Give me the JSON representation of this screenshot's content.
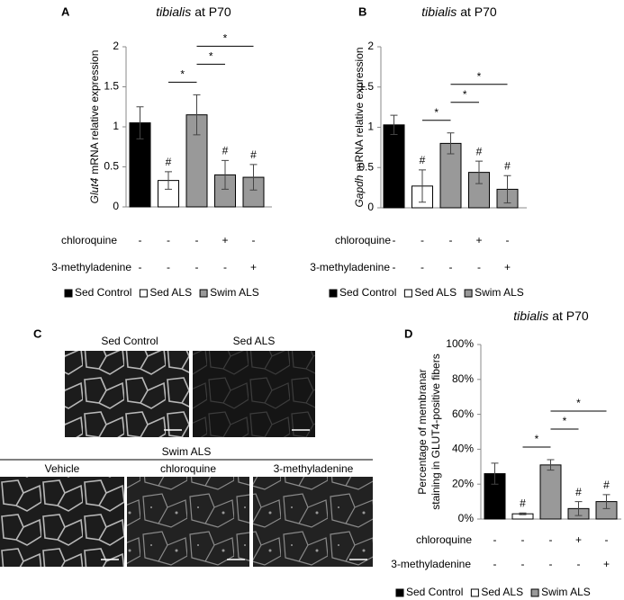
{
  "chart_data": [
    {
      "type": "bar",
      "panel": "A",
      "title_species": "tibialis",
      "title": "at P70",
      "ylabel_gene": "Glut4",
      "ylabel": "mRNA relative expression",
      "values": [
        1.05,
        0.33,
        1.15,
        0.4,
        0.37
      ],
      "errors": [
        0.2,
        0.11,
        0.25,
        0.18,
        0.16
      ],
      "colors": [
        "#000000",
        "#ffffff",
        "#999999",
        "#999999",
        "#999999"
      ],
      "markers": [
        null,
        "#",
        null,
        "#",
        "#"
      ],
      "brackets": [
        {
          "between": [
            1,
            2
          ],
          "label": "*"
        },
        {
          "between": [
            2,
            3
          ],
          "label": "*"
        },
        {
          "between": [
            2,
            4
          ],
          "label": "*"
        }
      ],
      "ylim": [
        0,
        2
      ],
      "yticks": [
        0,
        0.5,
        1,
        1.5,
        2
      ],
      "treatments": [
        {
          "name": "chloroquine",
          "signs": [
            "-",
            "-",
            "-",
            "+",
            "-"
          ]
        },
        {
          "name": "3-methyladenine",
          "signs": [
            "-",
            "-",
            "-",
            "-",
            "+"
          ]
        }
      ],
      "legend": [
        {
          "name": "Sed Control",
          "color": "#000000"
        },
        {
          "name": "Sed ALS",
          "color": "#ffffff"
        },
        {
          "name": "Swim ALS",
          "color": "#999999"
        }
      ]
    },
    {
      "type": "bar",
      "panel": "B",
      "title_species": "tibialis",
      "title": "at P70",
      "ylabel_gene": "Gapdh",
      "ylabel": "mRNA relative expression",
      "values": [
        1.03,
        0.27,
        0.8,
        0.44,
        0.23
      ],
      "errors": [
        0.12,
        0.2,
        0.13,
        0.14,
        0.17
      ],
      "colors": [
        "#000000",
        "#ffffff",
        "#999999",
        "#999999",
        "#999999"
      ],
      "markers": [
        null,
        "#",
        null,
        "#",
        "#"
      ],
      "brackets": [
        {
          "between": [
            1,
            2
          ],
          "label": "*"
        },
        {
          "between": [
            2,
            3
          ],
          "label": "*"
        },
        {
          "between": [
            2,
            4
          ],
          "label": "*"
        }
      ],
      "ylim": [
        0,
        2
      ],
      "yticks": [
        0,
        0.5,
        1,
        1.5,
        2
      ],
      "treatments": [
        {
          "name": "chloroquine",
          "signs": [
            "-",
            "-",
            "-",
            "+",
            "-"
          ]
        },
        {
          "name": "3-methyladenine",
          "signs": [
            "-",
            "-",
            "-",
            "-",
            "+"
          ]
        }
      ],
      "legend": [
        {
          "name": "Sed Control",
          "color": "#000000"
        },
        {
          "name": "Sed ALS",
          "color": "#ffffff"
        },
        {
          "name": "Swim ALS",
          "color": "#999999"
        }
      ]
    },
    {
      "type": "bar",
      "panel": "D",
      "title_species": "tibialis",
      "title": "at P70",
      "ylabel_lines": [
        "Percentage of membranar",
        "staining in GLUT4-positive fibers"
      ],
      "values": [
        26,
        3,
        31,
        6,
        10
      ],
      "errors": [
        6,
        0.5,
        3,
        4,
        4
      ],
      "colors": [
        "#000000",
        "#ffffff",
        "#999999",
        "#999999",
        "#999999"
      ],
      "markers": [
        null,
        "#",
        null,
        "#",
        "#"
      ],
      "brackets": [
        {
          "between": [
            1,
            2
          ],
          "label": "*"
        },
        {
          "between": [
            2,
            3
          ],
          "label": "*"
        },
        {
          "between": [
            2,
            4
          ],
          "label": "*"
        }
      ],
      "ylim": [
        0,
        100
      ],
      "yticks": [
        {
          "value": 0,
          "label": "0%"
        },
        {
          "value": 20,
          "label": "20%"
        },
        {
          "value": 40,
          "label": "40%"
        },
        {
          "value": 60,
          "label": "60%"
        },
        {
          "value": 80,
          "label": "80%"
        },
        {
          "value": 100,
          "label": "100%"
        }
      ],
      "treatments": [
        {
          "name": "chloroquine",
          "signs": [
            "-",
            "-",
            "-",
            "+",
            "-"
          ]
        },
        {
          "name": "3-methyladenine",
          "signs": [
            "-",
            "-",
            "-",
            "-",
            "+"
          ]
        }
      ],
      "legend": [
        {
          "name": "Sed Control",
          "color": "#000000"
        },
        {
          "name": "Sed ALS",
          "color": "#ffffff"
        },
        {
          "name": "Swim ALS",
          "color": "#999999"
        }
      ]
    }
  ],
  "panel_c": {
    "panel": "C",
    "top_labels": [
      "Sed Control",
      "Sed ALS"
    ],
    "group": "Swim ALS",
    "bottom_labels": [
      "Vehicle",
      "chloroquine",
      "3-methyladenine"
    ]
  }
}
